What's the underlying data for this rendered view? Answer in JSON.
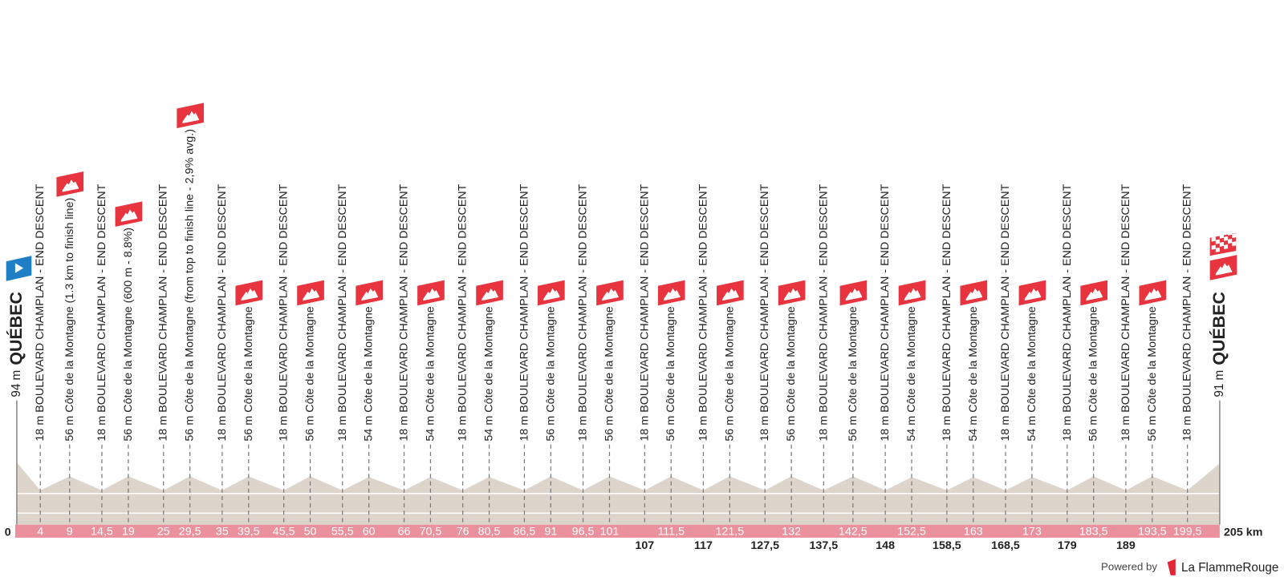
{
  "chart_data": {
    "type": "area",
    "unit": "m",
    "start": {
      "elevation": 94,
      "name": "QUÉBEC"
    },
    "finish": {
      "elevation": 91,
      "name": "QUÉBEC"
    },
    "xticks": [
      0,
      {
        "value": 205,
        "label": "205 km"
      }
    ],
    "waypoints": [
      {
        "km": 4,
        "elevation": 18,
        "name": "BOULEVARD CHAMPLAN - END DESCENT"
      },
      {
        "km": 9,
        "elevation": 56,
        "name": "Côte de la Montagne (1.3 km to finish line)",
        "climb": true
      },
      {
        "km": {
          "value": 14.5,
          "label": "14,5"
        },
        "elevation": 18,
        "name": "BOULEVARD CHAMPLAN - END DESCENT"
      },
      {
        "km": 19,
        "elevation": 56,
        "name": "Côte de la Montagne (600 m - 8.8%)",
        "climb": true
      },
      {
        "km": 25,
        "elevation": 18,
        "name": "BOULEVARD CHAMPLAN - END DESCENT"
      },
      {
        "km": {
          "value": 29.5,
          "label": "29,5"
        },
        "elevation": 56,
        "name": "Côte de la Montagne (from top to finish line - 2,9% avg.)",
        "climb": true
      },
      {
        "km": 35,
        "elevation": 18,
        "name": "BOULEVARD CHAMPLAN - END DESCENT"
      },
      {
        "km": {
          "value": 39.5,
          "label": "39,5"
        },
        "elevation": 56,
        "name": "Côte de la Montagne",
        "climb": true
      },
      {
        "km": {
          "value": 45.5,
          "label": "45,5"
        },
        "elevation": 18,
        "name": "BOULEVARD CHAMPLAN - END DESCENT"
      },
      {
        "km": 50,
        "elevation": 56,
        "name": "Côte de la Montagne",
        "climb": true
      },
      {
        "km": {
          "value": 55.5,
          "label": "55,5"
        },
        "elevation": 18,
        "name": "BOULEVARD CHAMPLAN - END DESCENT"
      },
      {
        "km": 60,
        "elevation": 54,
        "name": "Côte de la Montagne",
        "climb": true
      },
      {
        "km": 66,
        "elevation": 18,
        "name": "BOULEVARD CHAMPLAN - END DESCENT"
      },
      {
        "km": {
          "value": 70.5,
          "label": "70,5"
        },
        "elevation": 54,
        "name": "Côte de la Montagne",
        "climb": true
      },
      {
        "km": 76,
        "elevation": 18,
        "name": "BOULEVARD CHAMPLAN - END DESCENT"
      },
      {
        "km": {
          "value": 80.5,
          "label": "80,5"
        },
        "elevation": 54,
        "name": "Côte de la Montagne",
        "climb": true
      },
      {
        "km": {
          "value": 86.5,
          "label": "86,5"
        },
        "elevation": 18,
        "name": "BOULEVARD CHAMPLAN - END DESCENT"
      },
      {
        "km": 91,
        "elevation": 56,
        "name": "Côte de la Montagne",
        "climb": true
      },
      {
        "km": {
          "value": 96.5,
          "label": "96,5"
        },
        "elevation": 18,
        "name": "BOULEVARD CHAMPLAN - END DESCENT"
      },
      {
        "km": 101,
        "elevation": 56,
        "name": "Côte de la Montagne",
        "climb": true
      },
      {
        "km": 107,
        "elevation": 18,
        "name": "BOULEVARD CHAMPLAN - END DESCENT"
      },
      {
        "km": {
          "value": 111.5,
          "label": "111,5"
        },
        "elevation": 56,
        "name": "Côte de la Montagne",
        "climb": true
      },
      {
        "km": 117,
        "elevation": 18,
        "name": "BOULEVARD CHAMPLAN - END DESCENT"
      },
      {
        "km": {
          "value": 121.5,
          "label": "121,5"
        },
        "elevation": 56,
        "name": "Côte de la Montagne",
        "climb": true
      },
      {
        "km": {
          "value": 127.5,
          "label": "127,5"
        },
        "elevation": 18,
        "name": "BOULEVARD CHAMPLAN - END DESCENT"
      },
      {
        "km": 132,
        "elevation": 56,
        "name": "Côte de la Montagne",
        "climb": true
      },
      {
        "km": {
          "value": 137.5,
          "label": "137,5"
        },
        "elevation": 18,
        "name": "BOULEVARD CHAMPLAN - END DESCENT"
      },
      {
        "km": {
          "value": 142.5,
          "label": "142,5"
        },
        "elevation": 56,
        "name": "Côte de la Montagne",
        "climb": true
      },
      {
        "km": 148,
        "elevation": 18,
        "name": "BOULEVARD CHAMPLAN - END DESCENT"
      },
      {
        "km": {
          "value": 152.5,
          "label": "152,5"
        },
        "elevation": 54,
        "name": "Côte de la Montagne",
        "climb": true
      },
      {
        "km": {
          "value": 158.5,
          "label": "158,5"
        },
        "elevation": 18,
        "name": "BOULEVARD CHAMPLAN - END DESCENT"
      },
      {
        "km": 163,
        "elevation": 54,
        "name": "Côte de la Montagne",
        "climb": true
      },
      {
        "km": {
          "value": 168.5,
          "label": "168,5"
        },
        "elevation": 18,
        "name": "BOULEVARD CHAMPLAN - END DESCENT"
      },
      {
        "km": 173,
        "elevation": 54,
        "name": "Côte de la Montagne",
        "climb": true
      },
      {
        "km": 179,
        "elevation": 18,
        "name": "BOULEVARD CHAMPLAN - END DESCENT"
      },
      {
        "km": {
          "value": 183.5,
          "label": "183,5"
        },
        "elevation": 56,
        "name": "Côte de la Montagne",
        "climb": true
      },
      {
        "km": 189,
        "elevation": 18,
        "name": "BOULEVARD CHAMPLAN - END DESCENT"
      },
      {
        "km": {
          "value": 193.5,
          "label": "193,5"
        },
        "elevation": 56,
        "name": "Côte de la Montagne",
        "climb": true
      },
      {
        "km": {
          "value": 199.5,
          "label": "199,5"
        },
        "elevation": 18,
        "name": "BOULEVARD CHAMPLAN - END DESCENT"
      }
    ],
    "color": "#ddd5cc",
    "footer": {
      "powered_by": "Powered by",
      "brand": "La FlammeRouge"
    }
  }
}
